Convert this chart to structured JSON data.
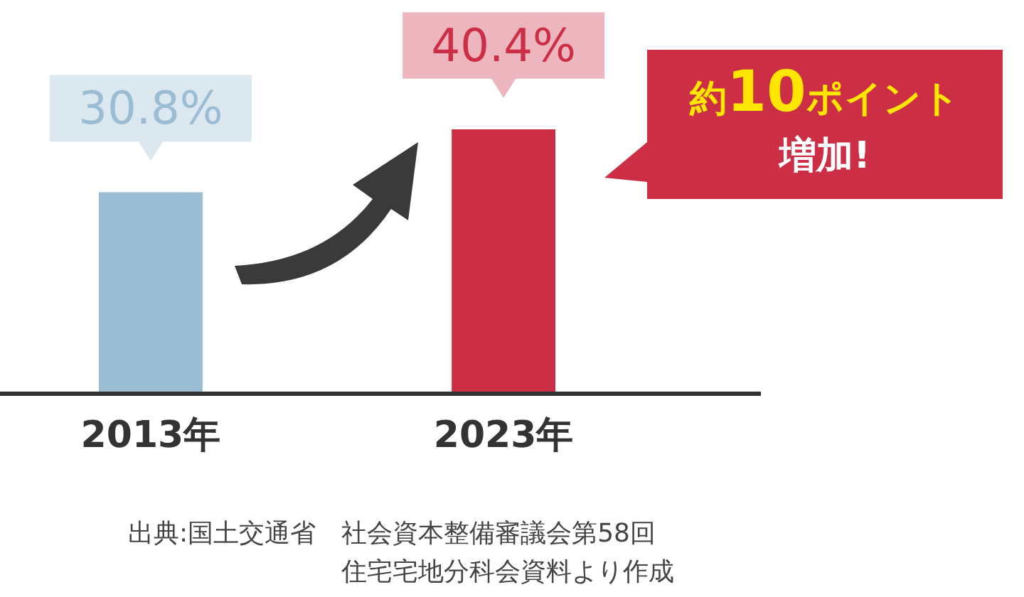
{
  "chart_data": {
    "type": "bar",
    "categories": [
      "2013年",
      "2023年"
    ],
    "values": [
      30.8,
      40.4
    ],
    "colors": [
      "#9bbdd3",
      "#cc2e45"
    ],
    "value_labels": [
      "30.8%",
      "40.4%"
    ],
    "annotations": [
      "約10ポイント増加!",
      "出典:国土交通省　社会資本整備審議会第58回住宅宅地分科会資料より作成"
    ]
  }
}
